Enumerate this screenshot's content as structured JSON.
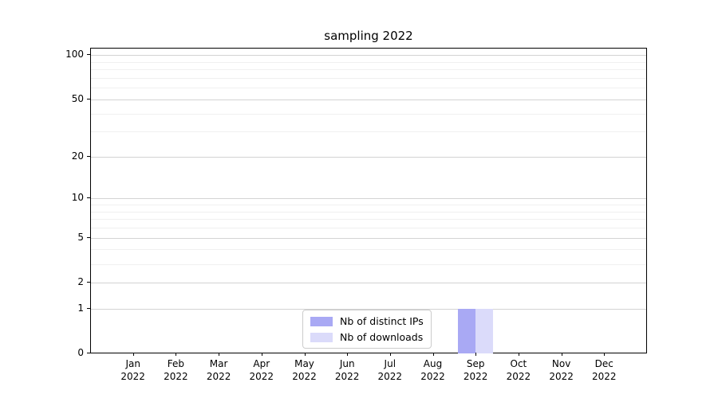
{
  "chart_data": {
    "type": "bar",
    "title": "sampling 2022",
    "categories": [
      "Jan",
      "Feb",
      "Mar",
      "Apr",
      "May",
      "Jun",
      "Jul",
      "Aug",
      "Sep",
      "Oct",
      "Nov",
      "Dec"
    ],
    "year_label": "2022",
    "series": [
      {
        "name": "Nb of distinct IPs",
        "color": "#a9a9f4",
        "values": [
          0,
          0,
          0,
          0,
          0,
          0,
          0,
          0,
          1,
          0,
          0,
          0
        ]
      },
      {
        "name": "Nb of downloads",
        "color": "#dbdbfa",
        "values": [
          0,
          0,
          0,
          0,
          0,
          0,
          0,
          0,
          1,
          0,
          0,
          0
        ]
      }
    ],
    "yscale": "log1p",
    "ylim": [
      0,
      111
    ],
    "yticks_major": [
      0,
      1,
      2,
      5,
      10,
      20,
      50,
      100
    ],
    "yticks_minor": [
      3,
      4,
      6,
      7,
      8,
      9,
      30,
      40,
      60,
      70,
      80,
      90
    ],
    "grid": "horizontal",
    "legend_position": "lower center",
    "colors": {
      "grid_major": "#d3d3d3",
      "grid_minor": "#f0f0f0",
      "axis": "#000000",
      "text": "#000000",
      "legend_border": "#cccccc",
      "background": "#ffffff"
    }
  }
}
